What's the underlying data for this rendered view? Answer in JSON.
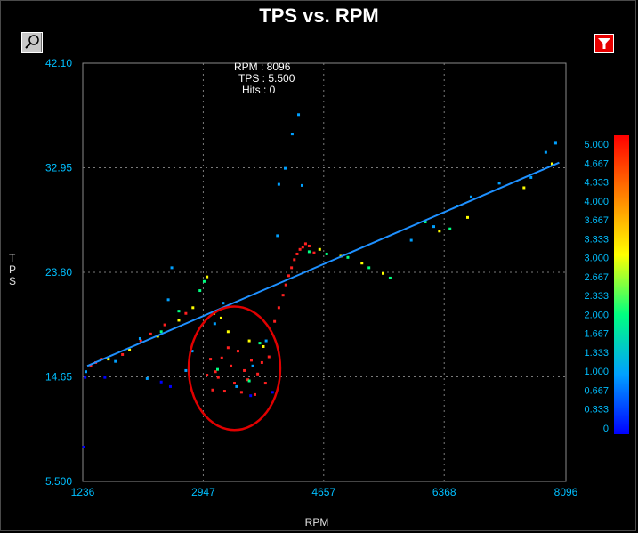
{
  "chart_data": {
    "type": "scatter",
    "title": "TPS vs. RPM",
    "xlabel": "RPM",
    "ylabel": "TPS",
    "xlim": [
      1236,
      8096
    ],
    "ylim": [
      5.5,
      42.1
    ],
    "x_ticks": [
      "1236",
      "2947",
      "4657",
      "6368",
      "8096"
    ],
    "y_ticks": [
      "42.10",
      "32.95",
      "23.80",
      "14.65",
      "5.500"
    ],
    "grid": true,
    "readout": {
      "rpm": "RPM : 8096",
      "tps": "TPS : 5.500",
      "hits": "Hits : 0"
    },
    "trend_line": {
      "x": [
        1300,
        8000
      ],
      "y": [
        15.6,
        33.4
      ]
    },
    "highlight_ellipse": {
      "cx": 3390,
      "cy": 15.4,
      "rx": 650,
      "ry": 5.4,
      "color": "#e00000"
    },
    "legend": {
      "labels": [
        "5.000",
        "4.667",
        "4.333",
        "4.000",
        "3.667",
        "3.333",
        "3.000",
        "2.667",
        "2.333",
        "2.000",
        "1.667",
        "1.333",
        "1.000",
        "0.667",
        "0.333",
        "0"
      ],
      "colors": [
        "#ff0000",
        "#ff8000",
        "#ffff00",
        "#00ff80",
        "#00a0ff",
        "#0000ff"
      ]
    },
    "series": [
      {
        "color": "#ff2020",
        "points": [
          [
            1350,
            15.6
          ],
          [
            1420,
            15.9
          ],
          [
            1500,
            16.2
          ],
          [
            1800,
            16.6
          ],
          [
            2060,
            17.8
          ],
          [
            2200,
            18.4
          ],
          [
            2400,
            19.2
          ],
          [
            2700,
            20.2
          ],
          [
            3000,
            14.8
          ],
          [
            3050,
            16.2
          ],
          [
            3080,
            13.5
          ],
          [
            3120,
            15.1
          ],
          [
            3160,
            14.6
          ],
          [
            3210,
            16.3
          ],
          [
            3250,
            13.4
          ],
          [
            3300,
            17.2
          ],
          [
            3340,
            15.6
          ],
          [
            3390,
            14.1
          ],
          [
            3440,
            16.9
          ],
          [
            3490,
            13.3
          ],
          [
            3530,
            15.2
          ],
          [
            3580,
            14.4
          ],
          [
            3630,
            16.1
          ],
          [
            3680,
            13.1
          ],
          [
            3720,
            14.9
          ],
          [
            3780,
            15.9
          ],
          [
            3830,
            14.1
          ],
          [
            3880,
            16.4
          ],
          [
            3960,
            19.5
          ],
          [
            4020,
            20.7
          ],
          [
            4080,
            21.8
          ],
          [
            4120,
            22.7
          ],
          [
            4160,
            23.5
          ],
          [
            4200,
            24.2
          ],
          [
            4240,
            24.9
          ],
          [
            4280,
            25.4
          ],
          [
            4320,
            25.8
          ],
          [
            4360,
            26.0
          ],
          [
            4400,
            26.3
          ],
          [
            4450,
            26.1
          ],
          [
            4520,
            25.5
          ]
        ]
      },
      {
        "color": "#ffff00",
        "points": [
          [
            1600,
            16.2
          ],
          [
            1900,
            17.0
          ],
          [
            2300,
            18.2
          ],
          [
            2600,
            19.6
          ],
          [
            2800,
            20.7
          ],
          [
            3000,
            23.4
          ],
          [
            3100,
            20.2
          ],
          [
            3200,
            19.8
          ],
          [
            3300,
            18.6
          ],
          [
            3600,
            17.8
          ],
          [
            3800,
            17.3
          ],
          [
            4600,
            25.8
          ],
          [
            4900,
            25.2
          ],
          [
            5200,
            24.6
          ],
          [
            5500,
            23.7
          ],
          [
            6300,
            27.4
          ],
          [
            6700,
            28.6
          ],
          [
            7500,
            31.2
          ],
          [
            7900,
            33.3
          ]
        ]
      },
      {
        "color": "#00ff80",
        "points": [
          [
            2350,
            18.6
          ],
          [
            2600,
            20.4
          ],
          [
            2900,
            22.2
          ],
          [
            2960,
            23.0
          ],
          [
            3150,
            15.3
          ],
          [
            3600,
            14.3
          ],
          [
            3750,
            17.6
          ],
          [
            4450,
            25.6
          ],
          [
            4700,
            25.4
          ],
          [
            5000,
            25.1
          ],
          [
            5300,
            24.2
          ],
          [
            5600,
            23.3
          ],
          [
            6100,
            28.2
          ],
          [
            6450,
            27.6
          ]
        ]
      },
      {
        "color": "#00a0ff",
        "points": [
          [
            1280,
            15.1
          ],
          [
            1700,
            16.0
          ],
          [
            2050,
            18.0
          ],
          [
            2150,
            14.5
          ],
          [
            2450,
            21.4
          ],
          [
            2500,
            24.2
          ],
          [
            2700,
            15.2
          ],
          [
            2790,
            16.9
          ],
          [
            3110,
            19.3
          ],
          [
            3230,
            21.1
          ],
          [
            3420,
            13.8
          ],
          [
            3650,
            15.6
          ],
          [
            3840,
            17.8
          ],
          [
            4000,
            27.0
          ],
          [
            4020,
            31.5
          ],
          [
            4110,
            32.9
          ],
          [
            4210,
            35.9
          ],
          [
            4300,
            37.6
          ],
          [
            4350,
            31.4
          ],
          [
            5900,
            26.6
          ],
          [
            6220,
            27.8
          ],
          [
            6550,
            29.6
          ],
          [
            6750,
            30.4
          ],
          [
            7150,
            31.6
          ],
          [
            7600,
            32.1
          ],
          [
            7810,
            34.3
          ],
          [
            7950,
            35.1
          ]
        ]
      },
      {
        "color": "#0000ff",
        "points": [
          [
            1250,
            8.5
          ],
          [
            1270,
            14.6
          ],
          [
            1550,
            14.6
          ],
          [
            2350,
            14.2
          ],
          [
            2480,
            13.8
          ],
          [
            3620,
            13.0
          ],
          [
            3930,
            13.3
          ]
        ]
      }
    ]
  }
}
